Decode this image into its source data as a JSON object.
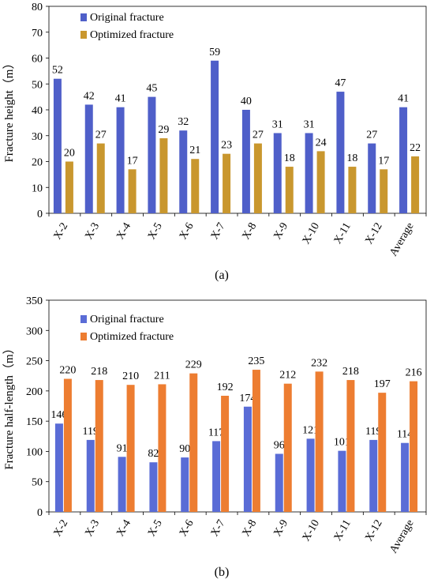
{
  "chart_data": [
    {
      "type": "bar",
      "caption": "(a)",
      "ylabel": "Fracture height（m）",
      "ylim": [
        0,
        80
      ],
      "yticks": [
        0,
        10,
        20,
        30,
        40,
        50,
        60,
        70,
        80
      ],
      "categories": [
        "X-2",
        "X-3",
        "X-4",
        "X-5",
        "X-6",
        "X-7",
        "X-8",
        "X-9",
        "X-10",
        "X-11",
        "X-12",
        "Average"
      ],
      "legend_position": "top-left",
      "series": [
        {
          "name": "Original fracture",
          "color": "#4f5fc9",
          "values": [
            52,
            42,
            41,
            45,
            32,
            59,
            40,
            31,
            31,
            47,
            27,
            41
          ]
        },
        {
          "name": "Optimized fracture",
          "color": "#c9972e",
          "values": [
            20,
            27,
            17,
            29,
            21,
            23,
            27,
            18,
            24,
            18,
            17,
            22
          ]
        }
      ]
    },
    {
      "type": "bar",
      "caption": "(b)",
      "ylabel": "Fracture half-length（m）",
      "ylim": [
        0,
        350
      ],
      "yticks": [
        0,
        50,
        100,
        150,
        200,
        250,
        300,
        350
      ],
      "categories": [
        "X-2",
        "X-3",
        "X-4",
        "X-5",
        "X-6",
        "X-7",
        "X-8",
        "X-9",
        "X-10",
        "X-11",
        "X-12",
        "Average"
      ],
      "legend_position": "top-left",
      "series": [
        {
          "name": "Original fracture",
          "color": "#5a6cd6",
          "values": [
            146,
            119,
            91,
            82,
            90,
            117,
            174,
            96,
            121,
            101,
            119,
            114
          ]
        },
        {
          "name": "Optimized fracture",
          "color": "#ed7d31",
          "values": [
            220,
            218,
            210,
            211,
            229,
            192,
            235,
            212,
            232,
            218,
            197,
            216
          ]
        }
      ]
    }
  ]
}
